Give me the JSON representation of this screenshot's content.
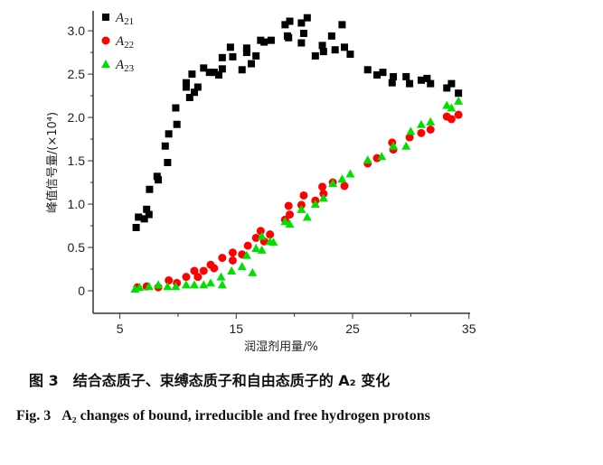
{
  "chart_data": {
    "type": "scatter",
    "xlabel": "润湿剂用量/%",
    "ylabel": "峰值信号量/(×10⁴)",
    "xlim": [
      2.7,
      35.1
    ],
    "ylim": [
      -0.26,
      3.23
    ],
    "xticks": [
      5,
      15,
      25,
      35
    ],
    "yticks": [
      0,
      0.5,
      1.0,
      1.5,
      2.0,
      2.5,
      3.0
    ],
    "ytick_labels": [
      "0",
      "0.5",
      "1.0",
      "1.5",
      "2.0",
      "2.5",
      "3.0"
    ],
    "grid": false,
    "legend_position": "top-left",
    "series": [
      {
        "name": "A21",
        "name_base": "A",
        "name_sub": "21",
        "marker": "square",
        "color": "#000000",
        "points": [
          [
            6.4,
            0.73
          ],
          [
            6.6,
            0.85
          ],
          [
            7.1,
            0.83
          ],
          [
            7.3,
            0.94
          ],
          [
            7.5,
            0.88
          ],
          [
            7.55,
            1.17
          ],
          [
            8.2,
            1.32
          ],
          [
            8.3,
            1.28
          ],
          [
            8.9,
            1.67
          ],
          [
            9.1,
            1.48
          ],
          [
            9.2,
            1.81
          ],
          [
            9.9,
            1.92
          ],
          [
            9.8,
            2.11
          ],
          [
            10.7,
            2.4
          ],
          [
            10.7,
            2.35
          ],
          [
            11.2,
            2.5
          ],
          [
            11.0,
            2.23
          ],
          [
            11.4,
            2.29
          ],
          [
            11.7,
            2.35
          ],
          [
            12.2,
            2.57
          ],
          [
            12.7,
            2.52
          ],
          [
            13.1,
            2.52
          ],
          [
            13.5,
            2.49
          ],
          [
            13.8,
            2.56
          ],
          [
            13.8,
            2.69
          ],
          [
            14.5,
            2.81
          ],
          [
            14.7,
            2.7
          ],
          [
            15.5,
            2.55
          ],
          [
            15.9,
            2.8
          ],
          [
            15.9,
            2.75
          ],
          [
            16.3,
            2.62
          ],
          [
            16.7,
            2.71
          ],
          [
            17.1,
            2.89
          ],
          [
            17.4,
            2.87
          ],
          [
            18.0,
            2.89
          ],
          [
            19.2,
            3.07
          ],
          [
            19.4,
            2.94
          ],
          [
            19.6,
            3.11
          ],
          [
            19.5,
            2.92
          ],
          [
            20.6,
            3.09
          ],
          [
            21.1,
            3.15
          ],
          [
            20.8,
            2.97
          ],
          [
            20.6,
            2.86
          ],
          [
            21.8,
            2.71
          ],
          [
            22.4,
            2.83
          ],
          [
            22.5,
            2.76
          ],
          [
            23.2,
            2.94
          ],
          [
            23.5,
            2.78
          ],
          [
            24.1,
            3.07
          ],
          [
            24.3,
            2.81
          ],
          [
            24.8,
            2.73
          ],
          [
            26.3,
            2.55
          ],
          [
            27.1,
            2.49
          ],
          [
            27.6,
            2.52
          ],
          [
            28.4,
            2.4
          ],
          [
            28.5,
            2.47
          ],
          [
            29.6,
            2.47
          ],
          [
            29.9,
            2.39
          ],
          [
            30.9,
            2.43
          ],
          [
            31.4,
            2.45
          ],
          [
            31.7,
            2.39
          ],
          [
            33.1,
            2.34
          ],
          [
            33.5,
            2.39
          ],
          [
            34.1,
            2.28
          ]
        ]
      },
      {
        "name": "A22",
        "name_base": "A",
        "name_sub": "22",
        "marker": "circle",
        "color": "#ff0000",
        "points": [
          [
            6.5,
            0.04
          ],
          [
            7.3,
            0.05
          ],
          [
            8.3,
            0.04
          ],
          [
            9.2,
            0.12
          ],
          [
            9.9,
            0.09
          ],
          [
            10.7,
            0.16
          ],
          [
            11.4,
            0.23
          ],
          [
            11.7,
            0.16
          ],
          [
            12.2,
            0.23
          ],
          [
            12.8,
            0.3
          ],
          [
            13.1,
            0.26
          ],
          [
            13.8,
            0.38
          ],
          [
            14.7,
            0.44
          ],
          [
            14.7,
            0.35
          ],
          [
            15.5,
            0.42
          ],
          [
            16.0,
            0.52
          ],
          [
            16.7,
            0.61
          ],
          [
            17.1,
            0.69
          ],
          [
            17.4,
            0.57
          ],
          [
            17.9,
            0.65
          ],
          [
            19.2,
            0.82
          ],
          [
            19.5,
            0.98
          ],
          [
            19.6,
            0.88
          ],
          [
            20.6,
            0.99
          ],
          [
            20.8,
            1.1
          ],
          [
            21.8,
            1.04
          ],
          [
            22.4,
            1.2
          ],
          [
            22.5,
            1.12
          ],
          [
            23.3,
            1.25
          ],
          [
            24.3,
            1.21
          ],
          [
            26.3,
            1.47
          ],
          [
            27.1,
            1.53
          ],
          [
            28.4,
            1.71
          ],
          [
            28.5,
            1.63
          ],
          [
            29.9,
            1.77
          ],
          [
            30.9,
            1.82
          ],
          [
            31.7,
            1.86
          ],
          [
            33.1,
            2.01
          ],
          [
            33.5,
            1.98
          ],
          [
            34.1,
            2.03
          ]
        ]
      },
      {
        "name": "A23",
        "name_base": "A",
        "name_sub": "23",
        "marker": "triangle",
        "color": "#00e000",
        "points": [
          [
            6.3,
            0.02
          ],
          [
            6.7,
            0.04
          ],
          [
            7.5,
            0.05
          ],
          [
            8.3,
            0.07
          ],
          [
            9.1,
            0.05
          ],
          [
            9.8,
            0.05
          ],
          [
            10.7,
            0.07
          ],
          [
            11.4,
            0.07
          ],
          [
            12.2,
            0.07
          ],
          [
            12.8,
            0.09
          ],
          [
            13.7,
            0.16
          ],
          [
            13.8,
            0.07
          ],
          [
            14.6,
            0.23
          ],
          [
            15.5,
            0.28
          ],
          [
            15.9,
            0.41
          ],
          [
            16.4,
            0.21
          ],
          [
            16.7,
            0.49
          ],
          [
            17.2,
            0.47
          ],
          [
            17.2,
            0.63
          ],
          [
            17.9,
            0.57
          ],
          [
            18.2,
            0.56
          ],
          [
            19.2,
            0.8
          ],
          [
            19.6,
            0.77
          ],
          [
            20.6,
            0.94
          ],
          [
            21.1,
            0.85
          ],
          [
            21.8,
            1.0
          ],
          [
            22.5,
            1.07
          ],
          [
            23.3,
            1.24
          ],
          [
            24.1,
            1.29
          ],
          [
            24.8,
            1.35
          ],
          [
            26.3,
            1.51
          ],
          [
            27.5,
            1.55
          ],
          [
            28.5,
            1.67
          ],
          [
            29.6,
            1.67
          ],
          [
            30.0,
            1.84
          ],
          [
            30.9,
            1.92
          ],
          [
            31.7,
            1.95
          ],
          [
            33.1,
            2.14
          ],
          [
            33.5,
            2.11
          ],
          [
            34.1,
            2.19
          ]
        ]
      }
    ]
  },
  "caption": {
    "cn": "图 3　结合态质子、束缚态质子和自由态质子的 A₂ 变化",
    "en_label": "Fig. 3",
    "en_text": "A₂ changes of bound, irreducible and free hydrogen protons"
  }
}
